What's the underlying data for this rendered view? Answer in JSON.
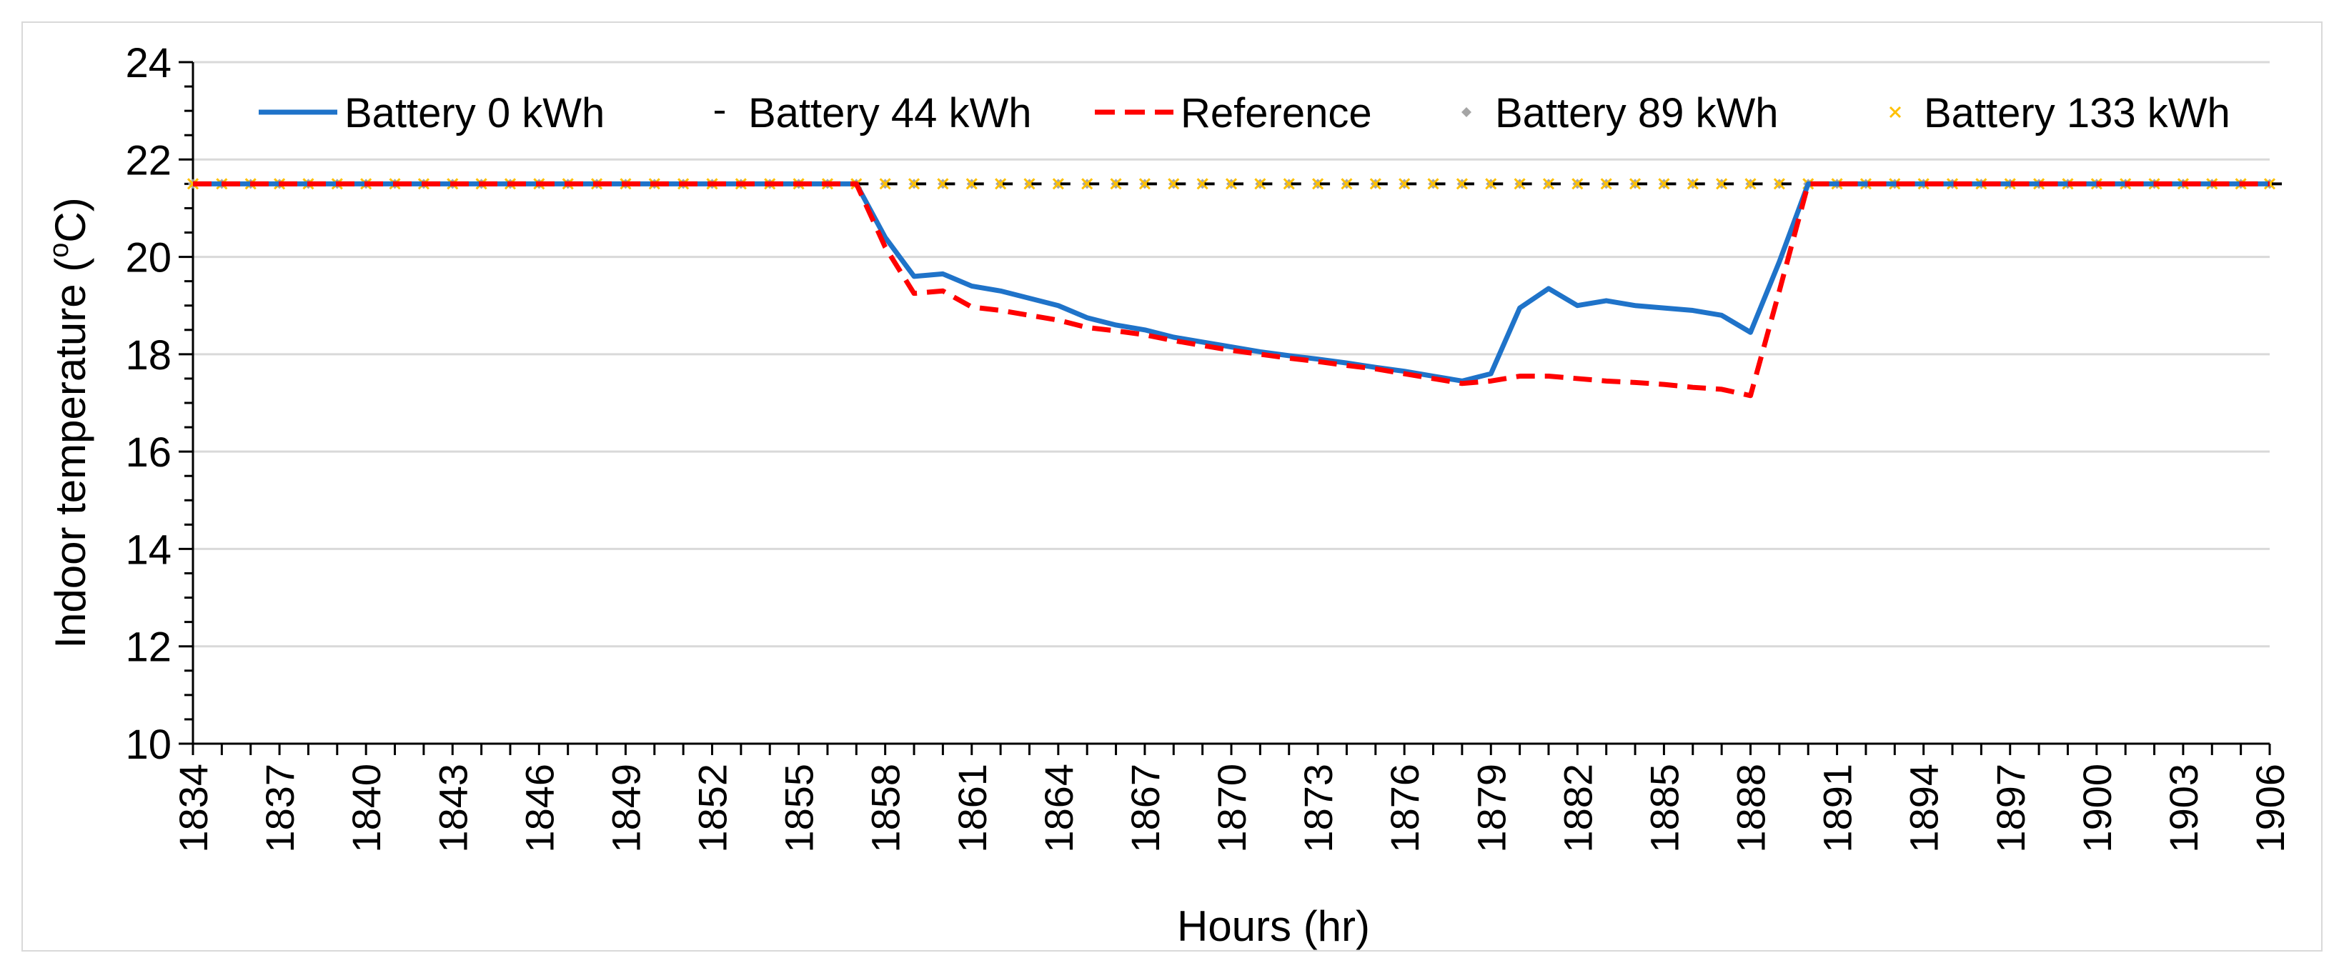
{
  "chart_data": {
    "type": "line",
    "title": "",
    "xlabel": "Hours (hr)",
    "ylabel": "Indoor temperature (°C)",
    "ylabel_parts": {
      "main": "Indoor temperature (",
      "sup": "o",
      "tail": "C)"
    },
    "ylim": [
      10,
      24
    ],
    "yticks": [
      10,
      12,
      14,
      16,
      18,
      20,
      22,
      24
    ],
    "xlim": [
      1834,
      1906
    ],
    "xticks": [
      1834,
      1837,
      1840,
      1843,
      1846,
      1849,
      1852,
      1855,
      1858,
      1861,
      1864,
      1867,
      1870,
      1873,
      1876,
      1879,
      1882,
      1885,
      1888,
      1891,
      1894,
      1897,
      1900,
      1903,
      1906
    ],
    "grid": true,
    "legend_position": "top",
    "series": [
      {
        "name": "Battery 0 kWh",
        "style": "solid-line",
        "color": "#1F73C9",
        "values": [
          [
            1834,
            21.5
          ],
          [
            1857,
            21.5
          ],
          [
            1858,
            20.4
          ],
          [
            1859,
            19.6
          ],
          [
            1860,
            19.65
          ],
          [
            1861,
            19.4
          ],
          [
            1862,
            19.3
          ],
          [
            1863,
            19.15
          ],
          [
            1864,
            19.0
          ],
          [
            1865,
            18.75
          ],
          [
            1866,
            18.6
          ],
          [
            1867,
            18.5
          ],
          [
            1868,
            18.35
          ],
          [
            1869,
            18.25
          ],
          [
            1870,
            18.15
          ],
          [
            1871,
            18.05
          ],
          [
            1872,
            17.97
          ],
          [
            1873,
            17.9
          ],
          [
            1874,
            17.82
          ],
          [
            1875,
            17.73
          ],
          [
            1876,
            17.65
          ],
          [
            1877,
            17.55
          ],
          [
            1878,
            17.45
          ],
          [
            1879,
            17.6
          ],
          [
            1880,
            18.95
          ],
          [
            1881,
            19.35
          ],
          [
            1882,
            19.0
          ],
          [
            1883,
            19.1
          ],
          [
            1884,
            19.0
          ],
          [
            1885,
            18.95
          ],
          [
            1886,
            18.9
          ],
          [
            1887,
            18.8
          ],
          [
            1888,
            18.45
          ],
          [
            1889,
            19.9
          ],
          [
            1890,
            21.5
          ],
          [
            1906,
            21.5
          ]
        ]
      },
      {
        "name": "Battery 44 kWh",
        "style": "dash-markers",
        "color": "#000000",
        "values": [
          [
            1834,
            21.5
          ],
          [
            1906,
            21.5
          ]
        ]
      },
      {
        "name": "Reference",
        "style": "dashed-line",
        "color": "#FF0000",
        "values": [
          [
            1834,
            21.5
          ],
          [
            1857,
            21.5
          ],
          [
            1858,
            20.2
          ],
          [
            1859,
            19.25
          ],
          [
            1860,
            19.3
          ],
          [
            1861,
            18.97
          ],
          [
            1862,
            18.9
          ],
          [
            1863,
            18.8
          ],
          [
            1864,
            18.7
          ],
          [
            1865,
            18.55
          ],
          [
            1866,
            18.48
          ],
          [
            1867,
            18.4
          ],
          [
            1868,
            18.28
          ],
          [
            1869,
            18.18
          ],
          [
            1870,
            18.08
          ],
          [
            1871,
            18.0
          ],
          [
            1872,
            17.92
          ],
          [
            1873,
            17.85
          ],
          [
            1874,
            17.77
          ],
          [
            1875,
            17.7
          ],
          [
            1876,
            17.6
          ],
          [
            1877,
            17.5
          ],
          [
            1878,
            17.4
          ],
          [
            1879,
            17.45
          ],
          [
            1880,
            17.55
          ],
          [
            1881,
            17.55
          ],
          [
            1882,
            17.5
          ],
          [
            1883,
            17.45
          ],
          [
            1884,
            17.42
          ],
          [
            1885,
            17.38
          ],
          [
            1886,
            17.32
          ],
          [
            1887,
            17.28
          ],
          [
            1888,
            17.15
          ],
          [
            1889,
            19.3
          ],
          [
            1890,
            21.5
          ],
          [
            1906,
            21.5
          ]
        ]
      },
      {
        "name": "Battery 89 kWh",
        "style": "diamond-markers",
        "color": "#A5A5A5",
        "values": [
          [
            1834,
            21.5
          ],
          [
            1906,
            21.5
          ]
        ]
      },
      {
        "name": "Battery 133 kWh",
        "style": "x-markers",
        "color": "#FFC000",
        "values": [
          [
            1834,
            21.5
          ],
          [
            1906,
            21.5
          ]
        ]
      }
    ]
  }
}
